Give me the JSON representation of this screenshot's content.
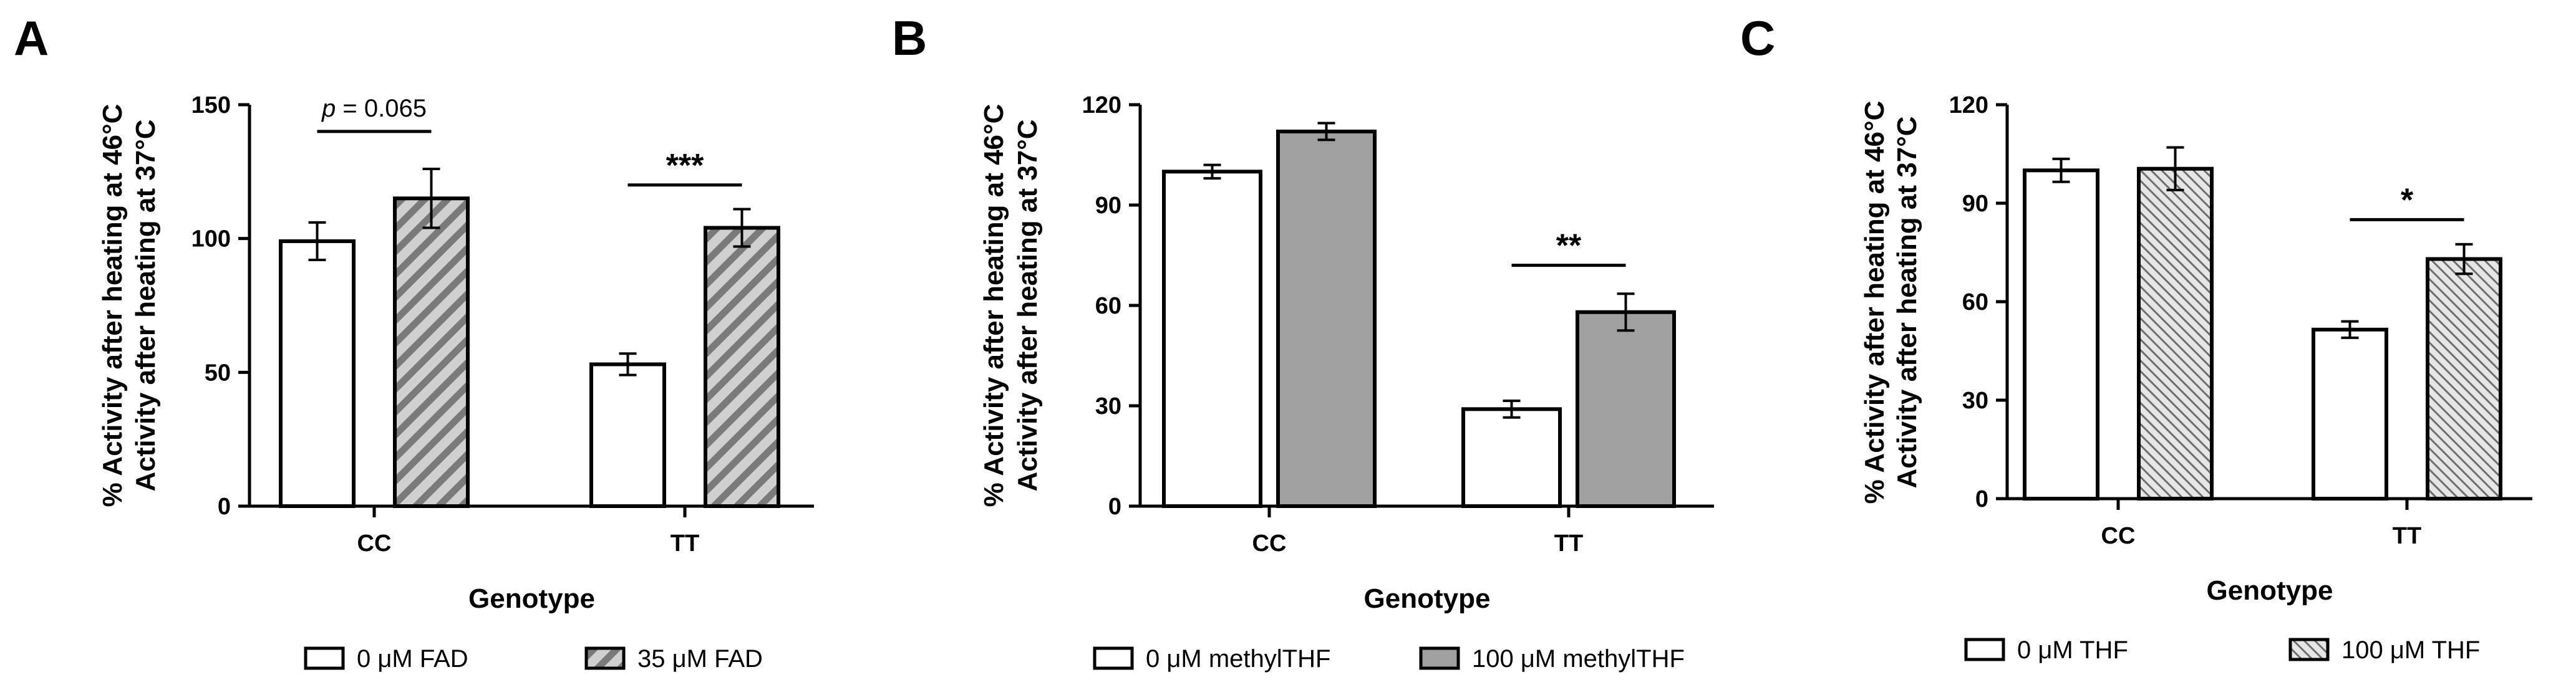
{
  "colors": {
    "ink": "#000000",
    "bar_white": "#ffffff",
    "bar_gray": "#a0a0a0",
    "hatch_bg": "#d0d0d0",
    "hatch_line": "#7a7a7a"
  },
  "chart_data": [
    {
      "panel": "A",
      "type": "bar",
      "categories": [
        "CC",
        "TT"
      ],
      "series": [
        {
          "name": "0 μM FAD",
          "style": "white",
          "values": [
            99,
            53
          ],
          "errors": [
            7,
            4
          ]
        },
        {
          "name": "35 μM FAD",
          "style": "hatch-wide",
          "values": [
            115,
            104
          ],
          "errors": [
            11,
            7
          ]
        }
      ],
      "ylabel_line1": "% Activity after heating at 46°C",
      "ylabel_line2": "Activity after heating at 37°C",
      "xlabel": "Genotype",
      "ylim": [
        0,
        150
      ],
      "yticks": [
        0,
        50,
        100,
        150
      ],
      "ytick_labels": [
        "0",
        "50",
        "100",
        "150"
      ],
      "annotations": [
        {
          "category": 0,
          "prefix": "p",
          "text": " = 0.065",
          "y": 140
        },
        {
          "category": 1,
          "text": "***",
          "y": 120
        }
      ],
      "legend": [
        "0 μM FAD",
        "35 μM FAD"
      ]
    },
    {
      "panel": "B",
      "type": "bar",
      "categories": [
        "CC",
        "TT"
      ],
      "series": [
        {
          "name": "0 μM methylTHF",
          "style": "white",
          "values": [
            100,
            29
          ],
          "errors": [
            2,
            2.5
          ]
        },
        {
          "name": "100 μM  methylTHF",
          "style": "gray",
          "values": [
            112,
            58
          ],
          "errors": [
            2.5,
            5.5
          ]
        }
      ],
      "ylabel_line1": "% Activity after heating at 46°C",
      "ylabel_line2": "Activity after heating at 37°C",
      "xlabel": "Genotype",
      "ylim": [
        0,
        120
      ],
      "yticks": [
        0,
        30,
        60,
        90,
        120
      ],
      "ytick_labels": [
        "0",
        "30",
        "60",
        "90",
        "120"
      ],
      "annotations": [
        {
          "category": 1,
          "text": "**",
          "y": 72
        }
      ],
      "legend": [
        "0 μM methylTHF",
        "100 μM  methylTHF"
      ]
    },
    {
      "panel": "C",
      "type": "bar",
      "categories": [
        "CC",
        "TT"
      ],
      "series": [
        {
          "name": "0 μM THF",
          "style": "white",
          "values": [
            100,
            51.5
          ],
          "errors": [
            3.5,
            2.5
          ]
        },
        {
          "name": "100 μM THF",
          "style": "hatch-fine",
          "values": [
            100.5,
            73
          ],
          "errors": [
            6.5,
            4.5
          ]
        }
      ],
      "ylabel_line1": "% Activity after heating at 46°C",
      "ylabel_line2": "Activity after heating at 37°C",
      "xlabel": "Genotype",
      "ylim": [
        0,
        120
      ],
      "yticks": [
        0,
        30,
        60,
        90,
        120
      ],
      "ytick_labels": [
        "0",
        "30",
        "60",
        "90",
        "120"
      ],
      "annotations": [
        {
          "category": 1,
          "text": "*",
          "y": 85
        }
      ],
      "legend": [
        "0 μM THF",
        "100 μM THF"
      ]
    }
  ]
}
